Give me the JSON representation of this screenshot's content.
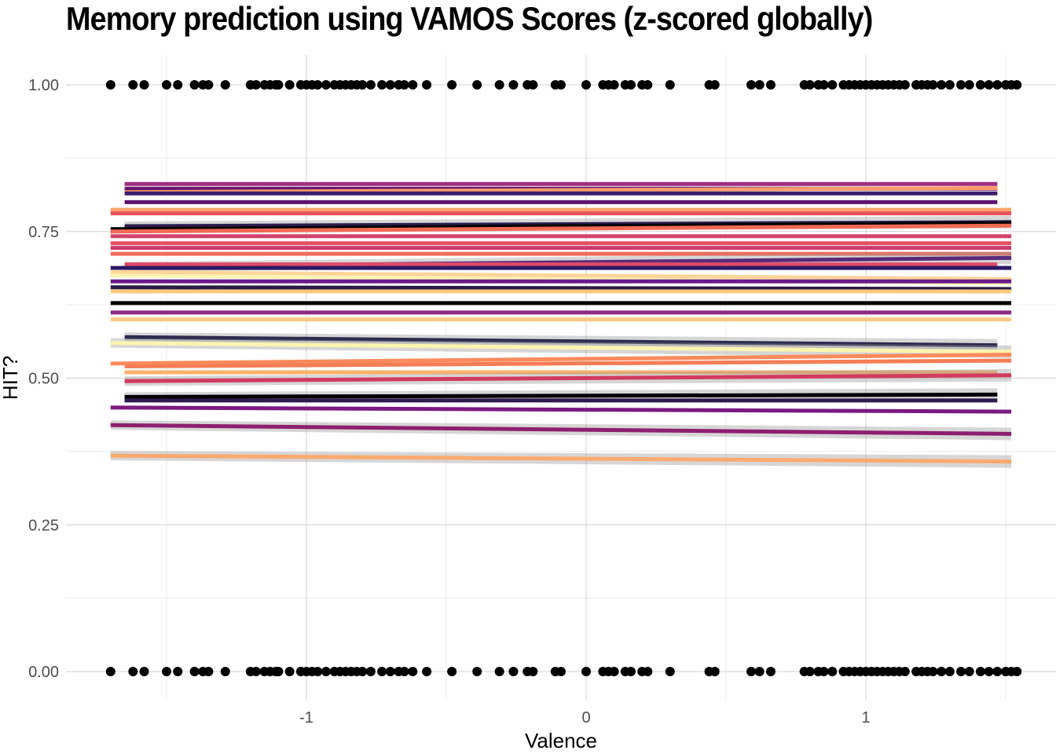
{
  "chart_data": {
    "type": "scatter",
    "title": "Memory prediction using VAMOS Scores (z-scored globally)",
    "xlabel": "Valence",
    "ylabel": "HIT?",
    "xlim": [
      -1.8,
      1.6
    ],
    "ylim": [
      -0.04,
      1.05
    ],
    "x_ticks": [
      -1,
      0,
      1
    ],
    "x_tick_labels": [
      "-1",
      "0",
      "1"
    ],
    "y_ticks": [
      0,
      0.25,
      0.5,
      0.75,
      1
    ],
    "y_tick_labels": [
      "0.00",
      "0.25",
      "0.50",
      "0.75",
      "1.00"
    ],
    "grid": true,
    "legend": "none",
    "points_x": [
      -1.7,
      -1.62,
      -1.58,
      -1.5,
      -1.46,
      -1.4,
      -1.37,
      -1.35,
      -1.29,
      -1.2,
      -1.18,
      -1.15,
      -1.13,
      -1.11,
      -1.1,
      -1.06,
      -1.02,
      -1.0,
      -0.98,
      -0.96,
      -0.93,
      -0.9,
      -0.88,
      -0.86,
      -0.84,
      -0.82,
      -0.8,
      -0.77,
      -0.73,
      -0.7,
      -0.67,
      -0.65,
      -0.62,
      -0.57,
      -0.48,
      -0.39,
      -0.31,
      -0.26,
      -0.21,
      -0.19,
      -0.11,
      -0.09,
      0.0,
      0.06,
      0.08,
      0.1,
      0.14,
      0.16,
      0.2,
      0.22,
      0.3,
      0.44,
      0.46,
      0.59,
      0.62,
      0.66,
      0.78,
      0.8,
      0.83,
      0.85,
      0.88,
      0.92,
      0.94,
      0.96,
      0.98,
      1.0,
      1.02,
      1.04,
      1.06,
      1.08,
      1.1,
      1.12,
      1.14,
      1.18,
      1.2,
      1.22,
      1.24,
      1.27,
      1.3,
      1.34,
      1.37,
      1.41,
      1.44,
      1.47,
      1.5,
      1.52,
      1.54
    ],
    "points_y": [
      1,
      0
    ],
    "series": [
      {
        "x": [
          -1.65,
          1.47
        ],
        "y": [
          0.831,
          0.831
        ],
        "color": "#9e2f7f",
        "band": false
      },
      {
        "x": [
          -1.65,
          1.47
        ],
        "y": [
          0.823,
          0.823
        ],
        "color": "#6a176e",
        "band": false
      },
      {
        "x": [
          -1.65,
          1.47
        ],
        "y": [
          0.817,
          0.824
        ],
        "color": "#fb9a6b",
        "band": false
      },
      {
        "x": [
          -1.65,
          1.47
        ],
        "y": [
          0.815,
          0.815
        ],
        "color": "#3b1c6a",
        "band": false
      },
      {
        "x": [
          -1.65,
          1.47
        ],
        "y": [
          0.8,
          0.8
        ],
        "color": "#5c126e",
        "band": false
      },
      {
        "x": [
          -1.7,
          1.52
        ],
        "y": [
          0.787,
          0.787
        ],
        "color": "#fca46a",
        "band": false
      },
      {
        "x": [
          -1.7,
          1.52
        ],
        "y": [
          0.781,
          0.781
        ],
        "color": "#e8525e",
        "band": false
      },
      {
        "x": [
          -1.65,
          1.52
        ],
        "y": [
          0.759,
          0.766
        ],
        "color": "#2c1d4f",
        "band": true
      },
      {
        "x": [
          -1.7,
          1.52
        ],
        "y": [
          0.754,
          0.764
        ],
        "color": "#000000",
        "band": false
      },
      {
        "x": [
          -1.7,
          1.52
        ],
        "y": [
          0.75,
          0.76
        ],
        "color": "#f26a54",
        "band": false
      },
      {
        "x": [
          -1.7,
          1.52
        ],
        "y": [
          0.742,
          0.742
        ],
        "color": "#d3436e",
        "band": false
      },
      {
        "x": [
          -1.7,
          1.52
        ],
        "y": [
          0.73,
          0.73
        ],
        "color": "#e44f64",
        "band": false
      },
      {
        "x": [
          -1.7,
          1.52
        ],
        "y": [
          0.722,
          0.722
        ],
        "color": "#cc3a6e",
        "band": false
      },
      {
        "x": [
          -1.7,
          1.52
        ],
        "y": [
          0.712,
          0.712
        ],
        "color": "#f06c5c",
        "band": false
      },
      {
        "x": [
          -1.65,
          1.52
        ],
        "y": [
          0.69,
          0.705
        ],
        "color": "#5a2a7a",
        "band": true
      },
      {
        "x": [
          -1.65,
          1.47
        ],
        "y": [
          0.694,
          0.694
        ],
        "color": "#df4b68",
        "band": false
      },
      {
        "x": [
          -1.7,
          1.52
        ],
        "y": [
          0.688,
          0.688
        ],
        "color": "#2b1865",
        "band": false
      },
      {
        "x": [
          -1.7,
          1.52
        ],
        "y": [
          0.681,
          0.669
        ],
        "color": "#fdd49a",
        "band": false
      },
      {
        "x": [
          -1.7,
          1.52
        ],
        "y": [
          0.675,
          0.662
        ],
        "color": "#fcf3b5",
        "band": false
      },
      {
        "x": [
          -1.7,
          1.52
        ],
        "y": [
          0.665,
          0.665
        ],
        "color": "#6a1a8a",
        "band": false
      },
      {
        "x": [
          -1.7,
          1.52
        ],
        "y": [
          0.655,
          0.652
        ],
        "color": "#2a1a45",
        "band": false
      },
      {
        "x": [
          -1.7,
          1.52
        ],
        "y": [
          0.648,
          0.648
        ],
        "color": "#faca7c",
        "band": false
      },
      {
        "x": [
          -1.7,
          1.52
        ],
        "y": [
          0.628,
          0.628
        ],
        "color": "#000000",
        "band": false
      },
      {
        "x": [
          -1.7,
          1.52
        ],
        "y": [
          0.612,
          0.612
        ],
        "color": "#8c2981",
        "band": false
      },
      {
        "x": [
          -1.7,
          1.52
        ],
        "y": [
          0.6,
          0.6
        ],
        "color": "#fdc884",
        "band": false
      },
      {
        "x": [
          -1.65,
          1.47
        ],
        "y": [
          0.57,
          0.556
        ],
        "color": "#2c2b4f",
        "band": true
      },
      {
        "x": [
          -1.7,
          1.52
        ],
        "y": [
          0.56,
          0.545
        ],
        "color": "#fbf5b0",
        "band": true
      },
      {
        "x": [
          -1.7,
          1.52
        ],
        "y": [
          0.525,
          0.54
        ],
        "color": "#fb8a5c",
        "band": false
      },
      {
        "x": [
          -1.65,
          1.52
        ],
        "y": [
          0.52,
          0.53
        ],
        "color": "#f57d55",
        "band": false
      },
      {
        "x": [
          -1.65,
          1.47
        ],
        "y": [
          0.51,
          0.51
        ],
        "color": "#fdb16b",
        "band": false
      },
      {
        "x": [
          -1.65,
          1.52
        ],
        "y": [
          0.495,
          0.505
        ],
        "color": "#d23a60",
        "band": true
      },
      {
        "x": [
          -1.65,
          1.47
        ],
        "y": [
          0.468,
          0.472
        ],
        "color": "#000004",
        "band": true
      },
      {
        "x": [
          -1.65,
          1.47
        ],
        "y": [
          0.462,
          0.462
        ],
        "color": "#2d1b4f",
        "band": false
      },
      {
        "x": [
          -1.7,
          1.52
        ],
        "y": [
          0.45,
          0.443
        ],
        "color": "#7b1a80",
        "band": false
      },
      {
        "x": [
          -1.7,
          1.52
        ],
        "y": [
          0.42,
          0.405
        ],
        "color": "#8e1f6f",
        "band": true
      },
      {
        "x": [
          -1.7,
          1.52
        ],
        "y": [
          0.368,
          0.358
        ],
        "color": "#fcaa6f",
        "band": true
      }
    ]
  }
}
